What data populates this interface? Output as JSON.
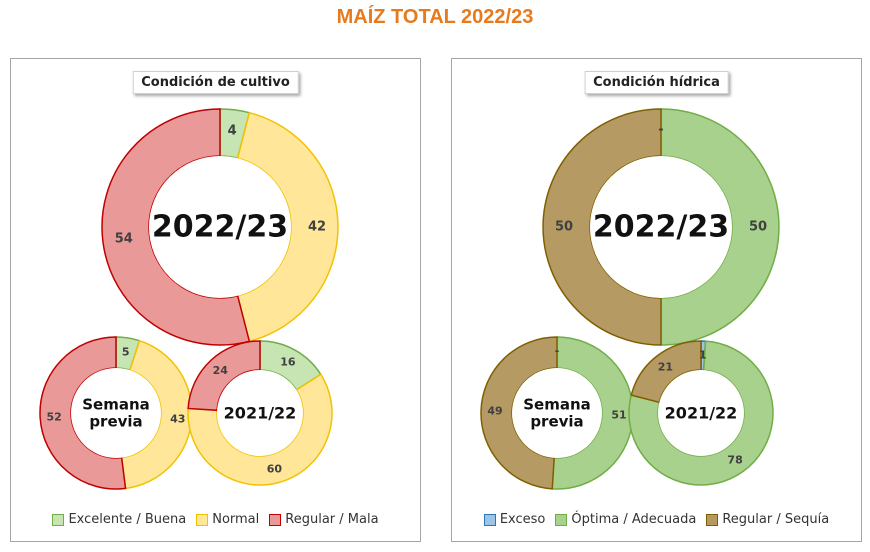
{
  "title": "MAÍZ TOTAL 2022/23",
  "colors": {
    "excelente_fill": "#C6E5B3",
    "excelente_stroke": "#70AD47",
    "normal_fill": "#FFE699",
    "normal_stroke": "#F2C200",
    "regular_fill": "#EA9999",
    "regular_stroke": "#C00000",
    "exceso_fill": "#9DC3E6",
    "exceso_stroke": "#2E75B6",
    "optima_fill": "#A9D18E",
    "optima_stroke": "#70AD47",
    "sequia_fill": "#B59A64",
    "sequia_stroke": "#7F6000"
  },
  "chart_data": [
    {
      "type": "pie",
      "title": "Condición de cultivo",
      "legend": [
        "Excelente / Buena",
        "Normal",
        "Regular / Mala"
      ],
      "legend_position": "bottom",
      "donuts": [
        {
          "center_label": "2022/23",
          "labels": [
            "4",
            "42",
            "54"
          ],
          "values": [
            4,
            42,
            54
          ]
        },
        {
          "center_label": "Semana previa",
          "labels": [
            "5",
            "43",
            "52"
          ],
          "values": [
            5,
            43,
            52
          ]
        },
        {
          "center_label": "2021/22",
          "labels": [
            "16",
            "60",
            "24"
          ],
          "values": [
            16,
            60,
            24
          ]
        }
      ]
    },
    {
      "type": "pie",
      "title": "Condición hídrica",
      "legend": [
        "Exceso",
        "Óptima / Adecuada",
        "Regular / Sequía"
      ],
      "legend_position": "bottom",
      "donuts": [
        {
          "center_label": "2022/23",
          "labels": [
            "-",
            "50",
            "50"
          ],
          "values": [
            0,
            50,
            50
          ]
        },
        {
          "center_label": "Semana previa",
          "labels": [
            "-",
            "51",
            "49"
          ],
          "values": [
            0,
            51,
            49
          ]
        },
        {
          "center_label": "2021/22",
          "labels": [
            "1",
            "78",
            "21"
          ],
          "values": [
            1,
            78,
            21
          ]
        }
      ]
    }
  ]
}
